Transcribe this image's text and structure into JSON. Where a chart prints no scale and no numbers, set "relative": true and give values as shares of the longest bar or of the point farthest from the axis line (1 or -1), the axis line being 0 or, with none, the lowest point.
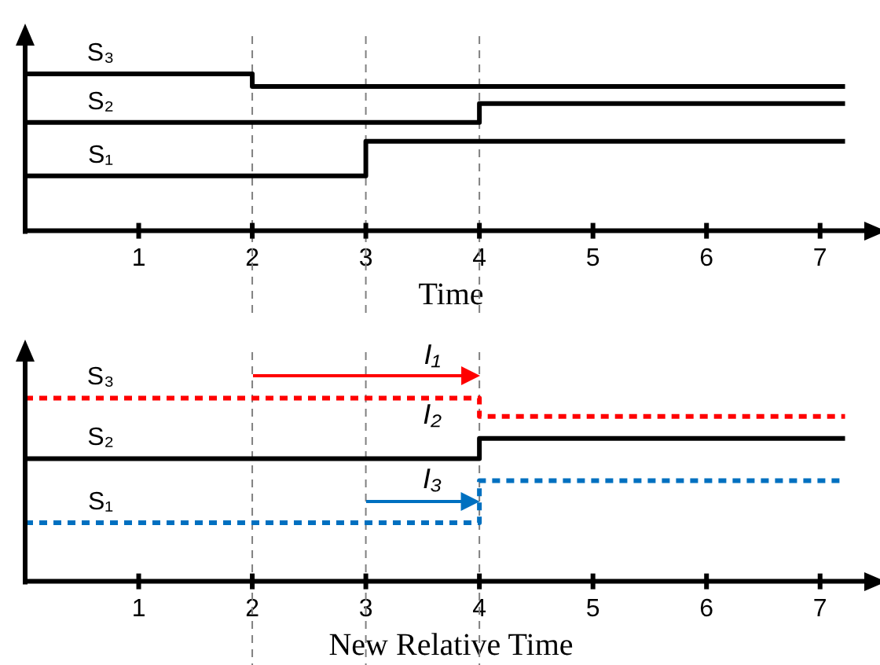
{
  "chart_data": [
    {
      "type": "step",
      "relative": true,
      "xlabel": "Time",
      "xlim": [
        0,
        7.5
      ],
      "xticks": [
        1,
        2,
        3,
        4,
        5,
        6,
        7
      ],
      "legend": false,
      "grid": false,
      "ref_lines": [
        {
          "axis": "x",
          "value": 2,
          "color": "#808080",
          "line_style": "dashed"
        },
        {
          "axis": "x",
          "value": 3,
          "color": "#808080",
          "line_style": "dashed"
        },
        {
          "axis": "x",
          "value": 4,
          "color": "#808080",
          "line_style": "dashed"
        }
      ],
      "series": [
        {
          "name": "S₃",
          "color": "#000000",
          "line_style": "solid",
          "x": [
            0,
            2,
            7.22
          ],
          "values": [
            1,
            0.92,
            0.92
          ]
        },
        {
          "name": "S₂",
          "color": "#000000",
          "line_style": "solid",
          "x": [
            0,
            4,
            7.22
          ],
          "values": [
            0.69,
            0.81,
            0.81
          ]
        },
        {
          "name": "S₁",
          "color": "#000000",
          "line_style": "solid",
          "x": [
            0,
            3,
            7.22
          ],
          "values": [
            0.35,
            0.57,
            0.57
          ]
        }
      ]
    },
    {
      "type": "step",
      "relative": true,
      "xlabel": "New Relative Time",
      "xlim": [
        0,
        7.5
      ],
      "xticks": [
        1,
        2,
        3,
        4,
        5,
        6,
        7
      ],
      "legend": false,
      "grid": false,
      "ref_lines": [
        {
          "axis": "x",
          "value": 2,
          "color": "#808080",
          "line_style": "dashed"
        },
        {
          "axis": "x",
          "value": 3,
          "color": "#808080",
          "line_style": "dashed"
        },
        {
          "axis": "x",
          "value": 4,
          "color": "#808080",
          "line_style": "dashed"
        }
      ],
      "annotations": [
        "I₁",
        "I₂",
        "I₃"
      ],
      "series": [
        {
          "name": "S₃",
          "color": "#ff0000",
          "line_style": "dashed",
          "x": [
            0,
            4,
            7.22
          ],
          "values": [
            1,
            0.9,
            0.9
          ]
        },
        {
          "name": "S₂",
          "color": "#000000",
          "line_style": "solid",
          "x": [
            0,
            4,
            7.22
          ],
          "values": [
            0.67,
            0.78,
            0.78
          ]
        },
        {
          "name": "S₁",
          "color": "#0070c0",
          "line_style": "dashed",
          "x": [
            0,
            4,
            7.22
          ],
          "values": [
            0.32,
            0.55,
            0.55
          ]
        }
      ]
    }
  ]
}
